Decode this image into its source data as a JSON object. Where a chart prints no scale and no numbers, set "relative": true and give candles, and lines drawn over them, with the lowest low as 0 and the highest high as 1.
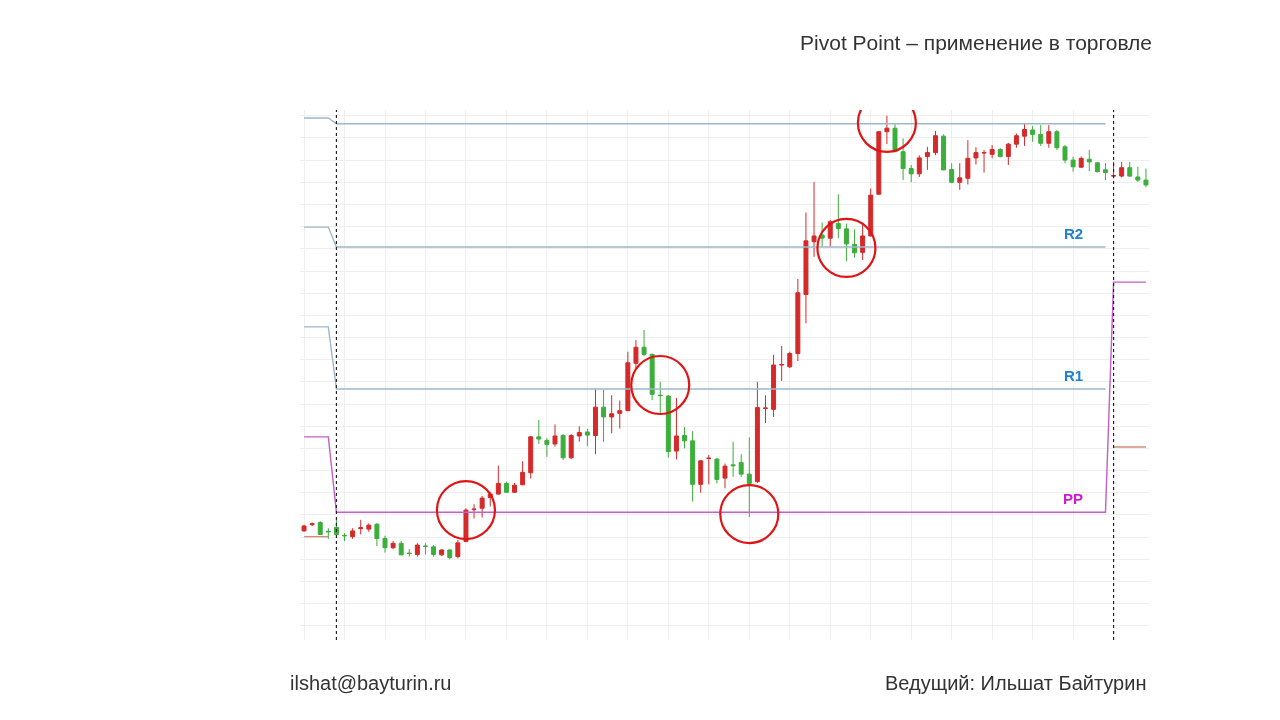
{
  "chart_data": {
    "type": "candlestick",
    "relative": true,
    "grid": true,
    "title": "Pivot Point – применение в торговле",
    "annotations": [
      "ilshat@bayturin.ru",
      "Ведущий: Ильшат Байтурин"
    ],
    "categories": [
      null,
      null,
      null,
      null,
      null,
      null,
      null,
      null,
      null,
      null,
      null,
      null,
      null,
      null,
      null,
      null,
      null,
      null,
      null,
      null,
      null,
      null,
      null,
      null,
      null,
      null,
      null,
      null,
      null,
      null,
      null,
      null,
      null,
      null,
      null,
      null,
      null,
      null,
      null,
      null,
      null,
      null,
      null,
      null,
      null,
      null,
      null,
      null,
      null,
      null,
      null,
      null,
      null,
      null,
      null,
      null,
      null,
      null,
      null,
      null,
      null,
      null,
      null,
      null,
      null,
      null,
      null,
      null,
      null,
      null,
      null,
      null,
      null,
      null,
      null,
      null,
      null,
      null,
      null,
      null,
      null,
      null,
      null,
      null,
      null,
      null,
      null,
      null,
      null,
      null,
      null,
      null,
      null,
      null,
      null,
      null,
      null,
      null,
      null,
      null,
      null,
      null,
      null,
      null,
      null
    ],
    "ohlc": [
      [
        0.064,
        0.078,
        0.063,
        0.075
      ],
      [
        0.078,
        0.083,
        0.075,
        0.08
      ],
      [
        0.083,
        0.086,
        0.056,
        0.056
      ],
      [
        0.063,
        0.07,
        0.046,
        0.062
      ],
      [
        0.072,
        0.089,
        0.053,
        0.056
      ],
      [
        0.054,
        0.059,
        0.041,
        0.053
      ],
      [
        0.051,
        0.07,
        0.046,
        0.064
      ],
      [
        0.069,
        0.089,
        0.056,
        0.071
      ],
      [
        0.068,
        0.081,
        0.062,
        0.077
      ],
      [
        0.079,
        0.082,
        0.03,
        0.047
      ],
      [
        0.047,
        0.053,
        0.015,
        0.026
      ],
      [
        0.026,
        0.041,
        0.023,
        0.036
      ],
      [
        0.036,
        0.041,
        0.009,
        0.01
      ],
      [
        0.014,
        0.023,
        0.006,
        0.013
      ],
      [
        0.011,
        0.036,
        0.006,
        0.032
      ],
      [
        0.03,
        0.036,
        0.011,
        0.029
      ],
      [
        0.028,
        0.032,
        0.006,
        0.011
      ],
      [
        0.01,
        0.023,
        0.007,
        0.021
      ],
      [
        0.021,
        0.023,
        0,
        0.004
      ],
      [
        0.006,
        0.044,
        0.002,
        0.037
      ],
      [
        0.04,
        0.115,
        0.039,
        0.111
      ],
      [
        0.112,
        0.124,
        0.092,
        0.113
      ],
      [
        0.115,
        0.143,
        0.094,
        0.138
      ],
      [
        0.139,
        0.152,
        0.119,
        0.147
      ],
      [
        0.147,
        0.211,
        0.146,
        0.171
      ],
      [
        0.171,
        0.175,
        0.15,
        0.151
      ],
      [
        0.151,
        0.172,
        0.15,
        0.167
      ],
      [
        0.168,
        0.221,
        0.167,
        0.196
      ],
      [
        0.195,
        0.278,
        0.182,
        0.276
      ],
      [
        0.276,
        0.314,
        0.26,
        0.271
      ],
      [
        0.268,
        0.273,
        0.231,
        0.259
      ],
      [
        0.26,
        0.304,
        0.254,
        0.278
      ],
      [
        0.279,
        0.282,
        0.224,
        0.229
      ],
      [
        0.229,
        0.282,
        0.226,
        0.279
      ],
      [
        0.278,
        0.3,
        0.265,
        0.286
      ],
      [
        0.287,
        0.294,
        0.255,
        0.28
      ],
      [
        0.279,
        0.385,
        0.237,
        0.343
      ],
      [
        0.343,
        0.382,
        0.265,
        0.321
      ],
      [
        0.321,
        0.37,
        0.284,
        0.328
      ],
      [
        0.329,
        0.358,
        0.295,
        0.335
      ],
      [
        0.335,
        0.468,
        0.334,
        0.443
      ],
      [
        0.442,
        0.494,
        0.431,
        0.478
      ],
      [
        0.478,
        0.517,
        0.458,
        0.462
      ],
      [
        0.462,
        0.464,
        0.359,
        0.372
      ],
      [
        0.37,
        0.4,
        0.33,
        0.369
      ],
      [
        0.368,
        0.37,
        0.229,
        0.243
      ],
      [
        0.244,
        0.364,
        0.225,
        0.278
      ],
      [
        0.279,
        0.298,
        0.25,
        0.267
      ],
      [
        0.267,
        0.289,
        0.13,
        0.169
      ],
      [
        0.169,
        0.223,
        0.15,
        0.222
      ],
      [
        0.227,
        0.235,
        0.169,
        0.228
      ],
      [
        0.226,
        0.228,
        0.171,
        0.18
      ],
      [
        0.183,
        0.216,
        0.16,
        0.21
      ],
      [
        0.213,
        0.265,
        0.186,
        0.211
      ],
      [
        0.218,
        0.237,
        0.186,
        0.192
      ],
      [
        0.192,
        0.275,
        0.095,
        0.171
      ],
      [
        0.175,
        0.4,
        0.172,
        0.342
      ],
      [
        0.34,
        0.37,
        0.307,
        0.341
      ],
      [
        0.338,
        0.461,
        0.321,
        0.438
      ],
      [
        0.438,
        0.481,
        0.402,
        0.439
      ],
      [
        0.434,
        0.468,
        0.431,
        0.464
      ],
      [
        0.464,
        0.632,
        0.447,
        0.601
      ],
      [
        0.597,
        0.782,
        0.532,
        0.718
      ],
      [
        0.716,
        0.851,
        0.682,
        0.729
      ],
      [
        0.731,
        0.759,
        0.705,
        0.724
      ],
      [
        0.724,
        0.765,
        0.705,
        0.761
      ],
      [
        0.757,
        0.823,
        0.724,
        0.746
      ],
      [
        0.745,
        0.757,
        0.672,
        0.711
      ],
      [
        0.71,
        0.744,
        0.68,
        0.691
      ],
      [
        0.692,
        0.754,
        0.675,
        0.729
      ],
      [
        0.729,
        0.836,
        0.728,
        0.821
      ],
      [
        0.823,
        0.965,
        0.822,
        0.964
      ],
      [
        0.964,
        1,
        0.936,
        0.972
      ],
      [
        0.972,
        0.981,
        0.918,
        0.919
      ],
      [
        0.919,
        0.949,
        0.855,
        0.881
      ],
      [
        0.881,
        0.889,
        0.85,
        0.869
      ],
      [
        0.869,
        0.911,
        0.862,
        0.905
      ],
      [
        0.908,
        0.93,
        0.878,
        0.917
      ],
      [
        0.917,
        0.966,
        0.911,
        0.955
      ],
      [
        0.954,
        0.958,
        0.877,
        0.878
      ],
      [
        0.879,
        0.893,
        0.848,
        0.85
      ],
      [
        0.85,
        0.893,
        0.833,
        0.86
      ],
      [
        0.859,
        0.945,
        0.845,
        0.904
      ],
      [
        0.905,
        0.929,
        0.89,
        0.917
      ],
      [
        0.916,
        0.923,
        0.872,
        0.917
      ],
      [
        0.913,
        0.934,
        0.904,
        0.924
      ],
      [
        0.924,
        0.927,
        0.906,
        0.908
      ],
      [
        0.908,
        0.939,
        0.889,
        0.936
      ],
      [
        0.936,
        0.96,
        0.928,
        0.955
      ],
      [
        0.954,
        0.983,
        0.932,
        0.969
      ],
      [
        0.968,
        0.977,
        0.941,
        0.958
      ],
      [
        0.958,
        0.979,
        0.932,
        0.938
      ],
      [
        0.938,
        0.979,
        0.928,
        0.964
      ],
      [
        0.964,
        0.968,
        0.923,
        0.928
      ],
      [
        0.93,
        0.934,
        0.893,
        0.9
      ],
      [
        0.9,
        0.908,
        0.874,
        0.885
      ],
      [
        0.884,
        0.908,
        0.883,
        0.904
      ],
      [
        0.902,
        0.923,
        0.875,
        0.896
      ],
      [
        0.894,
        0.895,
        0.872,
        0.874
      ],
      [
        0.878,
        0.893,
        0.855,
        0.872
      ],
      [
        0.864,
        0.896,
        0.859,
        0.865
      ],
      [
        0.864,
        0.896,
        0.861,
        0.883
      ],
      [
        0.883,
        0.896,
        0.862,
        0.864
      ],
      [
        0.862,
        0.885,
        0.851,
        0.855
      ],
      [
        0.855,
        0.881,
        0.839,
        0.844
      ]
    ],
    "colors": [
      "#d42a2a",
      "#d42a2a",
      "#3cae3c",
      "#3cae3c",
      "#3cae3c",
      "#3cae3c",
      "#d42a2a",
      "#d42a2a",
      "#d42a2a",
      "#3cae3c",
      "#3cae3c",
      "#d42a2a",
      "#3cae3c",
      "#3cae3c",
      "#d42a2a",
      "#3cae3c",
      "#3cae3c",
      "#d42a2a",
      "#3cae3c",
      "#d42a2a",
      "#d42a2a",
      "#d42a2a",
      "#d42a2a",
      "#d42a2a",
      "#d42a2a",
      "#3cae3c",
      "#d42a2a",
      "#d42a2a",
      "#d42a2a",
      "#3cae3c",
      "#3cae3c",
      "#d42a2a",
      "#3cae3c",
      "#d42a2a",
      "#d42a2a",
      "#3cae3c",
      "#d42a2a",
      "#3cae3c",
      "#d42a2a",
      "#d42a2a",
      "#d42a2a",
      "#d42a2a",
      "#3cae3c",
      "#3cae3c",
      "#3cae3c",
      "#3cae3c",
      "#d42a2a",
      "#3cae3c",
      "#3cae3c",
      "#d42a2a",
      "#d42a2a",
      "#3cae3c",
      "#d42a2a",
      "#3cae3c",
      "#3cae3c",
      "#3cae3c",
      "#d42a2a",
      "#d42a2a",
      "#d42a2a",
      "#d42a2a",
      "#d42a2a",
      "#d42a2a",
      "#d42a2a",
      "#d42a2a",
      "#3cae3c",
      "#d42a2a",
      "#3cae3c",
      "#3cae3c",
      "#3cae3c",
      "#d42a2a",
      "#d42a2a",
      "#d42a2a",
      "#d42a2a",
      "#3cae3c",
      "#3cae3c",
      "#3cae3c",
      "#d42a2a",
      "#d42a2a",
      "#d42a2a",
      "#3cae3c",
      "#3cae3c",
      "#d42a2a",
      "#d42a2a",
      "#d42a2a",
      "#d42a2a",
      "#d42a2a",
      "#3cae3c",
      "#d42a2a",
      "#d42a2a",
      "#d42a2a",
      "#3cae3c",
      "#3cae3c",
      "#d42a2a",
      "#3cae3c",
      "#3cae3c",
      "#3cae3c",
      "#d42a2a",
      "#3cae3c",
      "#3cae3c",
      "#3cae3c",
      "#d42a2a",
      "#d42a2a",
      "#3cae3c",
      "#3cae3c",
      "#3cae3c"
    ],
    "series": [
      {
        "type": "line",
        "color": "#9db7cc",
        "values": [
          0.995,
          0.995,
          0.995,
          0.995,
          0.982,
          0.982,
          0.982,
          0.982,
          0.982,
          0.982,
          0.982,
          0.982,
          0.982,
          0.982,
          0.982,
          0.982,
          0.982,
          0.982,
          0.982,
          0.982,
          0.982,
          0.982,
          0.982,
          0.982,
          0.982,
          0.982,
          0.982,
          0.982,
          0.982,
          0.982,
          0.982,
          0.982,
          0.982,
          0.982,
          0.982,
          0.982,
          0.982,
          0.982,
          0.982,
          0.982,
          0.982,
          0.982,
          0.982,
          0.982,
          0.982,
          0.982,
          0.982,
          0.982,
          0.982,
          0.982,
          0.982,
          0.982,
          0.982,
          0.982,
          0.982,
          0.982,
          0.982,
          0.982,
          0.982,
          0.982,
          0.982,
          0.982,
          0.982,
          0.982,
          0.982,
          0.982,
          0.982,
          0.982,
          0.982,
          0.982,
          0.982,
          0.982,
          0.982,
          0.982,
          0.982,
          0.982,
          0.982,
          0.982,
          0.982,
          0.982,
          0.982,
          0.982,
          0.982,
          0.982,
          0.982,
          0.982,
          0.982,
          0.982,
          0.982,
          0.982,
          0.982,
          0.982,
          0.982,
          0.982,
          0.982,
          0.982,
          0.982,
          0.982,
          0.982,
          0.982,
          null,
          null,
          null,
          null,
          null
        ]
      },
      {
        "type": "line",
        "name": "R2",
        "color": "#9db7cc",
        "values": [
          0.749,
          0.749,
          0.749,
          0.749,
          0.704,
          0.704,
          0.704,
          0.704,
          0.704,
          0.704,
          0.704,
          0.704,
          0.704,
          0.704,
          0.704,
          0.704,
          0.704,
          0.704,
          0.704,
          0.704,
          0.704,
          0.704,
          0.704,
          0.704,
          0.704,
          0.704,
          0.704,
          0.704,
          0.704,
          0.704,
          0.704,
          0.704,
          0.704,
          0.704,
          0.704,
          0.704,
          0.704,
          0.704,
          0.704,
          0.704,
          0.704,
          0.704,
          0.704,
          0.704,
          0.704,
          0.704,
          0.704,
          0.704,
          0.704,
          0.704,
          0.704,
          0.704,
          0.704,
          0.704,
          0.704,
          0.704,
          0.704,
          0.704,
          0.704,
          0.704,
          0.704,
          0.704,
          0.704,
          0.704,
          0.704,
          0.704,
          0.704,
          0.704,
          0.704,
          0.704,
          0.704,
          0.704,
          0.704,
          0.704,
          0.704,
          0.704,
          0.704,
          0.704,
          0.704,
          0.704,
          0.704,
          0.704,
          0.704,
          0.704,
          0.704,
          0.704,
          0.704,
          0.704,
          0.704,
          0.704,
          0.704,
          0.704,
          0.704,
          0.704,
          0.704,
          0.704,
          0.704,
          0.704,
          0.704,
          0.704,
          null,
          null,
          null,
          null,
          null
        ]
      },
      {
        "type": "line",
        "name": "R1",
        "color": "#9db7cc",
        "values": [
          0.524,
          0.524,
          0.524,
          0.524,
          0.384,
          0.384,
          0.384,
          0.384,
          0.384,
          0.384,
          0.384,
          0.384,
          0.384,
          0.384,
          0.384,
          0.384,
          0.384,
          0.384,
          0.384,
          0.384,
          0.384,
          0.384,
          0.384,
          0.384,
          0.384,
          0.384,
          0.384,
          0.384,
          0.384,
          0.384,
          0.384,
          0.384,
          0.384,
          0.384,
          0.384,
          0.384,
          0.384,
          0.384,
          0.384,
          0.384,
          0.384,
          0.384,
          0.384,
          0.384,
          0.384,
          0.384,
          0.384,
          0.384,
          0.384,
          0.384,
          0.384,
          0.384,
          0.384,
          0.384,
          0.384,
          0.384,
          0.384,
          0.384,
          0.384,
          0.384,
          0.384,
          0.384,
          0.384,
          0.384,
          0.384,
          0.384,
          0.384,
          0.384,
          0.384,
          0.384,
          0.384,
          0.384,
          0.384,
          0.384,
          0.384,
          0.384,
          0.384,
          0.384,
          0.384,
          0.384,
          0.384,
          0.384,
          0.384,
          0.384,
          0.384,
          0.384,
          0.384,
          0.384,
          0.384,
          0.384,
          0.384,
          0.384,
          0.384,
          0.384,
          0.384,
          0.384,
          0.384,
          0.384,
          0.384,
          0.384,
          null,
          null,
          null,
          null,
          null
        ]
      },
      {
        "type": "line",
        "name": "PP",
        "color": "#c45ec8",
        "values": [
          0.276,
          0.276,
          0.276,
          0.276,
          0.106,
          0.106,
          0.106,
          0.106,
          0.106,
          0.106,
          0.106,
          0.106,
          0.106,
          0.106,
          0.106,
          0.106,
          0.106,
          0.106,
          0.106,
          0.106,
          0.106,
          0.106,
          0.106,
          0.106,
          0.106,
          0.106,
          0.106,
          0.106,
          0.106,
          0.106,
          0.106,
          0.106,
          0.106,
          0.106,
          0.106,
          0.106,
          0.106,
          0.106,
          0.106,
          0.106,
          0.106,
          0.106,
          0.106,
          0.106,
          0.106,
          0.106,
          0.106,
          0.106,
          0.106,
          0.106,
          0.106,
          0.106,
          0.106,
          0.106,
          0.106,
          0.106,
          0.106,
          0.106,
          0.106,
          0.106,
          0.106,
          0.106,
          0.106,
          0.106,
          0.106,
          0.106,
          0.106,
          0.106,
          0.106,
          0.106,
          0.106,
          0.106,
          0.106,
          0.106,
          0.106,
          0.106,
          0.106,
          0.106,
          0.106,
          0.106,
          0.106,
          0.106,
          0.106,
          0.106,
          0.106,
          0.106,
          0.106,
          0.106,
          0.106,
          0.106,
          0.106,
          0.106,
          0.106,
          0.106,
          0.106,
          0.106,
          0.106,
          0.106,
          0.106,
          0.106,
          0.625,
          0.625,
          0.625,
          0.625,
          0.625
        ]
      },
      {
        "type": "line",
        "color": "#d08c7c",
        "values": [
          0.051,
          0.051,
          0.051,
          0.051,
          null,
          null,
          null,
          null,
          null,
          null,
          null,
          null,
          null,
          null,
          null,
          null,
          null,
          null,
          null,
          null,
          null,
          null,
          null,
          null,
          null,
          null,
          null,
          null,
          null,
          null,
          null,
          null,
          null,
          null,
          null,
          null,
          null,
          null,
          null,
          null,
          null,
          null,
          null,
          null,
          null,
          null,
          null,
          null,
          null,
          null,
          null,
          null,
          null,
          null,
          null,
          null,
          null,
          null,
          null,
          null,
          null,
          null,
          null,
          null,
          null,
          null,
          null,
          null,
          null,
          null,
          null,
          null,
          null,
          null,
          null,
          null,
          null,
          null,
          null,
          null,
          null,
          null,
          null,
          null,
          null,
          null,
          null,
          null,
          null,
          null,
          null,
          null,
          null,
          null,
          null,
          null,
          null,
          null,
          null,
          null,
          0.253,
          0.253,
          0.253,
          0.253,
          0.253
        ]
      },
      {
        "type": "scatter",
        "marker": "circle",
        "color": "#e01414",
        "values": [
          null,
          null,
          null,
          null,
          null,
          null,
          null,
          null,
          null,
          null,
          null,
          null,
          null,
          null,
          null,
          null,
          null,
          null,
          null,
          null,
          0.111,
          null,
          null,
          null,
          null,
          null,
          null,
          null,
          null,
          null,
          null,
          null,
          null,
          null,
          null,
          null,
          null,
          null,
          null,
          null,
          null,
          null,
          null,
          null,
          0.393,
          null,
          null,
          null,
          null,
          null,
          null,
          null,
          null,
          null,
          null,
          0.102,
          null,
          null,
          null,
          null,
          null,
          null,
          null,
          null,
          null,
          null,
          null,
          0.702,
          null,
          null,
          null,
          null,
          0.984,
          null,
          null,
          null,
          null,
          null,
          null,
          null,
          null,
          null,
          null,
          null,
          null,
          null,
          null,
          null,
          null,
          null,
          null,
          null,
          null,
          null,
          null,
          null,
          null,
          null,
          null,
          null,
          null,
          null,
          null,
          null,
          null
        ]
      }
    ]
  }
}
